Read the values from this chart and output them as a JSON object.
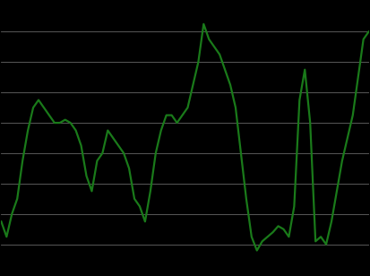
{
  "values": [
    -2.5,
    -3.5,
    -2.0,
    -1.0,
    1.5,
    3.5,
    5.0,
    5.5,
    5.0,
    4.5,
    4.0,
    4.0,
    4.2,
    4.0,
    3.5,
    2.5,
    0.5,
    -0.5,
    1.5,
    2.0,
    3.5,
    3.0,
    2.5,
    2.0,
    1.0,
    -1.0,
    -1.5,
    -2.5,
    -0.5,
    2.0,
    3.5,
    4.5,
    4.5,
    4.0,
    4.5,
    5.0,
    6.5,
    8.0,
    10.5,
    9.5,
    9.0,
    8.5,
    7.5,
    6.5,
    5.0,
    2.0,
    -1.0,
    -3.5,
    -4.4,
    -3.8,
    -3.5,
    -3.2,
    -2.8,
    -3.0,
    -3.5,
    -1.5,
    5.5,
    7.5,
    4.0,
    -3.8,
    -3.5,
    -4.0,
    -2.5,
    -0.5,
    1.5,
    3.0,
    4.5,
    7.0,
    9.5,
    10.0
  ],
  "line_color": "#1a7a1a",
  "background_color": "#000000",
  "grid_color": "#666666",
  "ylim": [
    -6,
    12
  ],
  "yticks": [
    -4,
    -2,
    0,
    2,
    4,
    6,
    8,
    10
  ],
  "linewidth": 1.6
}
